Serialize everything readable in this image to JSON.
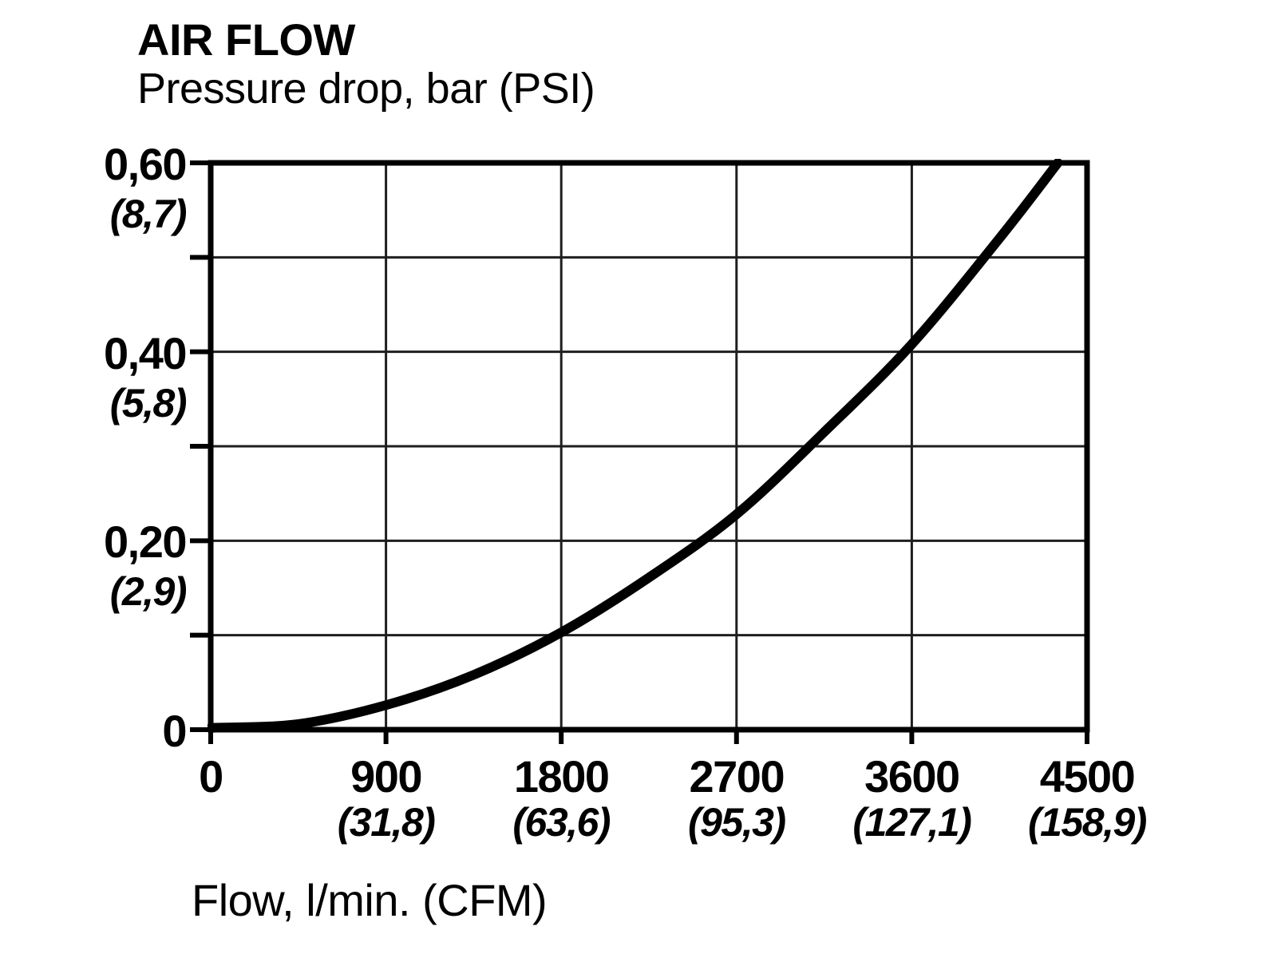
{
  "header": {
    "title": "AIR FLOW",
    "subtitle": "Pressure drop, bar (PSI)"
  },
  "axes": {
    "x_caption": "Flow, l/min. (CFM)"
  },
  "colors": {
    "ink": "#000000",
    "grid": "#1e1e1e",
    "background": "#ffffff"
  },
  "chart_data": {
    "type": "line",
    "title": "AIR FLOW",
    "subtitle": "Pressure drop, bar (PSI)",
    "xlabel": "Flow, l/min. (CFM)",
    "ylabel": "Pressure drop, bar (PSI)",
    "xlim": [
      0,
      4500
    ],
    "ylim": [
      0,
      0.6
    ],
    "grid": true,
    "legend": false,
    "x_gridline_step": 900,
    "y_gridline_step": 0.1,
    "x_ticks": [
      {
        "value": 0,
        "label": "0",
        "sub": ""
      },
      {
        "value": 900,
        "label": "900",
        "sub": "(31,8)"
      },
      {
        "value": 1800,
        "label": "1800",
        "sub": "(63,6)"
      },
      {
        "value": 2700,
        "label": "2700",
        "sub": "(95,3)"
      },
      {
        "value": 3600,
        "label": "3600",
        "sub": "(127,1)"
      },
      {
        "value": 4500,
        "label": "4500",
        "sub": "(158,9)"
      }
    ],
    "y_tick_values": [
      0,
      0.1,
      0.2,
      0.3,
      0.4,
      0.5,
      0.6
    ],
    "y_ticks_labeled": [
      {
        "value": 0.6,
        "label": "0,60",
        "sub": "(8,7)"
      },
      {
        "value": 0.4,
        "label": "0,40",
        "sub": "(5,8)"
      },
      {
        "value": 0.2,
        "label": "0,20",
        "sub": "(2,9)"
      },
      {
        "value": 0,
        "label": "0",
        "sub": ""
      }
    ],
    "series": [
      {
        "name": "pressure-drop-curve",
        "points": [
          [
            0,
            0.002
          ],
          [
            450,
            0.006
          ],
          [
            900,
            0.026
          ],
          [
            1350,
            0.058
          ],
          [
            1800,
            0.103
          ],
          [
            2250,
            0.161
          ],
          [
            2700,
            0.228
          ],
          [
            3150,
            0.315
          ],
          [
            3600,
            0.408
          ],
          [
            4050,
            0.52
          ],
          [
            4350,
            0.6
          ]
        ]
      }
    ]
  }
}
